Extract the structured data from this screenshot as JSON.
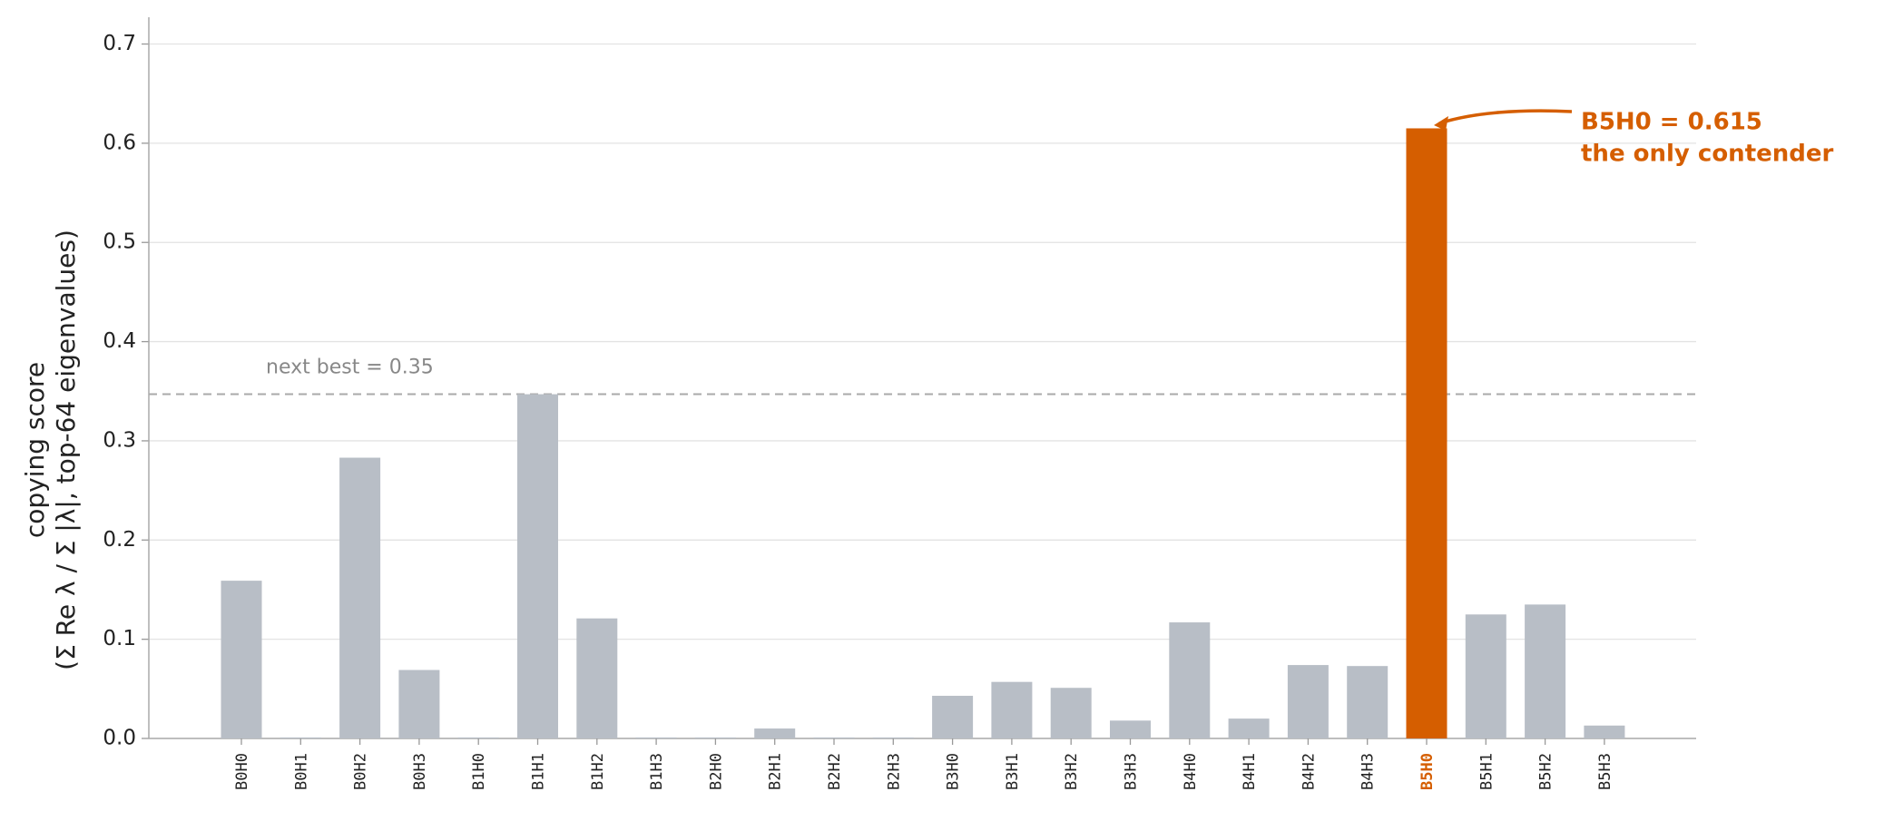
{
  "chart_data": {
    "type": "bar",
    "y_label_lines": [
      "copying score",
      "(Σ Re λ / Σ |λ|, top-64 eigenvalues)"
    ],
    "categories": [
      "B0H0",
      "B0H1",
      "B0H2",
      "B0H3",
      "B1H0",
      "B1H1",
      "B1H2",
      "B1H3",
      "B2H0",
      "B2H1",
      "B2H2",
      "B2H3",
      "B3H0",
      "B3H1",
      "B3H2",
      "B3H3",
      "B4H0",
      "B4H1",
      "B4H2",
      "B4H3",
      "B5H0",
      "B5H1",
      "B5H2",
      "B5H3"
    ],
    "values": [
      0.159,
      0.001,
      0.283,
      0.069,
      0.001,
      0.347,
      0.121,
      0.001,
      0.001,
      0.01,
      0.001,
      0.001,
      0.043,
      0.057,
      0.051,
      0.018,
      0.117,
      0.02,
      0.074,
      0.073,
      0.615,
      0.125,
      0.135,
      0.013
    ],
    "color": "#b8bec6",
    "colors": [
      "#b8bec6",
      "#b8bec6",
      "#b8bec6",
      "#b8bec6",
      "#b8bec6",
      "#b8bec6",
      "#b8bec6",
      "#b8bec6",
      "#b8bec6",
      "#b8bec6",
      "#b8bec6",
      "#b8bec6",
      "#b8bec6",
      "#b8bec6",
      "#b8bec6",
      "#b8bec6",
      "#b8bec6",
      "#b8bec6",
      "#b8bec6",
      "#b8bec6",
      "#d55e00",
      "#b8bec6",
      "#b8bec6",
      "#b8bec6"
    ],
    "ylim": [
      0,
      0.727
    ],
    "yticks": [
      {
        "value": 0,
        "label": "0.0"
      },
      {
        "value": 0.1,
        "label": "0.1"
      },
      {
        "value": 0.2,
        "label": "0.2"
      },
      {
        "value": 0.3,
        "label": "0.3"
      },
      {
        "value": 0.4,
        "label": "0.4"
      },
      {
        "value": 0.5,
        "label": "0.5"
      },
      {
        "value": 0.6,
        "label": "0.6"
      },
      {
        "value": 0.7,
        "label": "0.7"
      }
    ],
    "grid": true,
    "reference_line": {
      "value": 0.347,
      "label": "next best = 0.35",
      "color": "#aaaaaa"
    },
    "annotation": {
      "lines": [
        "B5H0 = 0.615",
        "the only contender"
      ],
      "color": "#d55e00"
    }
  }
}
